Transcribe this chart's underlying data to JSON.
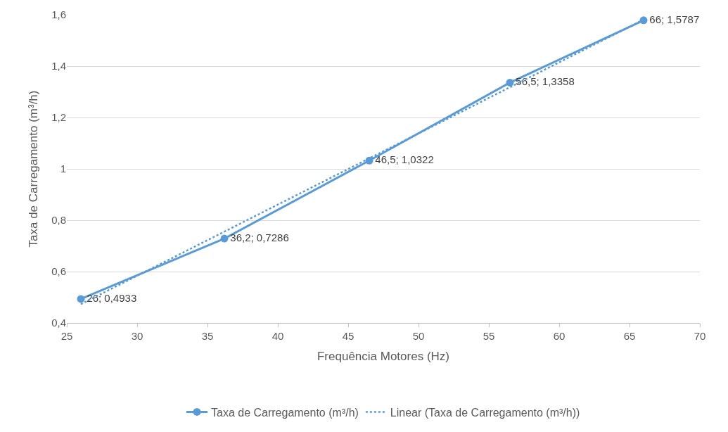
{
  "chart_data": {
    "type": "line",
    "xlabel": "Frequência Motores (Hz)",
    "ylabel": "Taxa de Carregamento (m³/h)",
    "x": [
      26,
      36.2,
      46.5,
      56.5,
      66
    ],
    "series": [
      {
        "name": "Taxa de Carregamento (m³/h)",
        "color": "#5b9bd5",
        "values": [
          0.4933,
          0.7286,
          1.0322,
          1.3358,
          1.5787
        ],
        "value_labels": [
          "26; 0,4933",
          "36,2; 0,7286",
          "46,5; 1,0322",
          "56,5; 1,3358",
          "66; 1,5787"
        ]
      },
      {
        "name": "Linear (Taxa de Carregamento (m³/h))",
        "color": "#5b9bd5",
        "x": [
          26,
          66
        ],
        "values": [
          0.473,
          1.581
        ],
        "line_style": "dotted",
        "marker": "none"
      }
    ],
    "xlim": [
      25,
      70
    ],
    "xticks": [
      25,
      30,
      35,
      40,
      45,
      50,
      55,
      60,
      65,
      70
    ],
    "ylim": [
      0.4,
      1.6
    ],
    "yticks": [
      {
        "value": 0.4,
        "label": "0,4"
      },
      {
        "value": 0.6,
        "label": "0,6"
      },
      {
        "value": 0.8,
        "label": "0,8"
      },
      {
        "value": 1,
        "label": "1"
      },
      {
        "value": 1.2,
        "label": "1,2"
      },
      {
        "value": 1.4,
        "label": "1,4"
      },
      {
        "value": 1.6,
        "label": "1,6"
      }
    ],
    "grid": "y",
    "legend": "bottom",
    "marker": "circle",
    "line_style": "solid"
  }
}
